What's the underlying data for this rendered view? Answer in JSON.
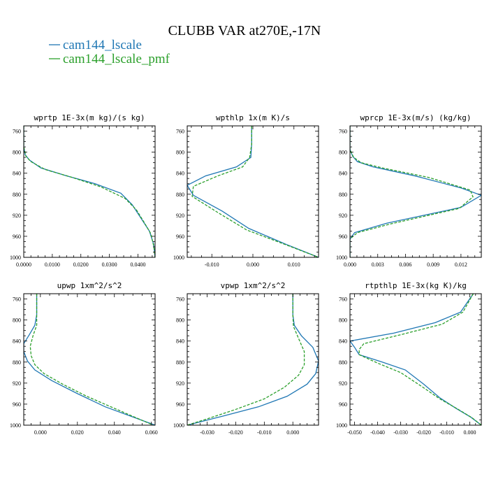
{
  "figure": {
    "title": "CLUBB VAR at270E,-17N",
    "legend": [
      {
        "label": "cam144_lscale",
        "color": "#1f77b4"
      },
      {
        "label": "cam144_lscale_pmf",
        "color": "#2ca02c"
      }
    ]
  },
  "chart_data": [
    {
      "type": "line",
      "title": "wprtp  1E-3x(m kg)/(s kg)",
      "xlim": [
        0,
        0.046
      ],
      "ylim": [
        1000,
        750
      ],
      "xticks": [
        0,
        0.01,
        0.02,
        0.03,
        0.04
      ],
      "xtick_labels": [
        "0.0000",
        "0.0100",
        "0.0200",
        "0.0300",
        "0.0400"
      ],
      "yticks": [
        760,
        800,
        840,
        880,
        920,
        960,
        1000
      ],
      "ytick_labels": [
        "760",
        "800",
        "840",
        "880",
        "920",
        "960",
        "1000"
      ],
      "series": [
        {
          "name": "cam144_lscale",
          "color": "#1f77b4",
          "dash": false,
          "points": [
            [
              0,
              750
            ],
            [
              0,
              790
            ],
            [
              0.0005,
              805
            ],
            [
              0.002,
              815
            ],
            [
              0.006,
              830
            ],
            [
              0.015,
              845
            ],
            [
              0.025,
              860
            ],
            [
              0.034,
              878
            ],
            [
              0.038,
              900
            ],
            [
              0.041,
              925
            ],
            [
              0.044,
              950
            ],
            [
              0.0455,
              975
            ],
            [
              0.046,
              1000
            ]
          ]
        },
        {
          "name": "cam144_lscale_pmf",
          "color": "#2ca02c",
          "dash": true,
          "points": [
            [
              0,
              750
            ],
            [
              0,
              790
            ],
            [
              0.0008,
              808
            ],
            [
              0.0025,
              818
            ],
            [
              0.0075,
              833
            ],
            [
              0.017,
              848
            ],
            [
              0.027,
              866
            ],
            [
              0.0355,
              888
            ],
            [
              0.0395,
              910
            ],
            [
              0.042,
              932
            ],
            [
              0.0445,
              955
            ],
            [
              0.0455,
              978
            ],
            [
              0.046,
              1000
            ]
          ]
        }
      ]
    },
    {
      "type": "line",
      "title": "wpthlp  1x(m K)/s",
      "xlim": [
        -0.016,
        0.016
      ],
      "ylim": [
        1000,
        750
      ],
      "xticks": [
        -0.01,
        0,
        0.01
      ],
      "xtick_labels": [
        "-0.010",
        "0.000",
        "0.010"
      ],
      "yticks": [
        760,
        800,
        840,
        880,
        920,
        960,
        1000
      ],
      "ytick_labels": [
        "760",
        "800",
        "840",
        "880",
        "920",
        "960",
        "1000"
      ],
      "series": [
        {
          "name": "cam144_lscale",
          "color": "#1f77b4",
          "dash": false,
          "points": [
            [
              -0.0003,
              750
            ],
            [
              -0.0003,
              785
            ],
            [
              -0.0005,
              810
            ],
            [
              -0.004,
              828
            ],
            [
              -0.0115,
              845
            ],
            [
              -0.016,
              863
            ],
            [
              -0.0145,
              882
            ],
            [
              -0.0075,
              912
            ],
            [
              -0.001,
              945
            ],
            [
              0.008,
              975
            ],
            [
              0.016,
              1000
            ]
          ]
        },
        {
          "name": "cam144_lscale_pmf",
          "color": "#2ca02c",
          "dash": true,
          "points": [
            [
              -0.0003,
              750
            ],
            [
              -0.0003,
              785
            ],
            [
              -0.0008,
              810
            ],
            [
              -0.0025,
              828
            ],
            [
              -0.0085,
              845
            ],
            [
              -0.0145,
              865
            ],
            [
              -0.0148,
              884
            ],
            [
              -0.0085,
              915
            ],
            [
              -0.0015,
              948
            ],
            [
              0.008,
              976
            ],
            [
              0.016,
              1000
            ]
          ]
        }
      ]
    },
    {
      "type": "line",
      "title": "wprcp  1E-3x(m/s) (kg/kg)",
      "xlim": [
        0,
        0.0142
      ],
      "ylim": [
        1000,
        750
      ],
      "xticks": [
        0,
        0.003,
        0.006,
        0.009,
        0.012
      ],
      "xtick_labels": [
        "0.000",
        "0.003",
        "0.006",
        "0.009",
        "0.012"
      ],
      "yticks": [
        760,
        800,
        840,
        880,
        920,
        960,
        1000
      ],
      "ytick_labels": [
        "760",
        "800",
        "840",
        "880",
        "920",
        "960",
        "1000"
      ],
      "series": [
        {
          "name": "cam144_lscale",
          "color": "#1f77b4",
          "dash": false,
          "points": [
            [
              0,
              750
            ],
            [
              0,
              795
            ],
            [
              0.0003,
              808
            ],
            [
              0.0008,
              818
            ],
            [
              0.0025,
              828
            ],
            [
              0.007,
              845
            ],
            [
              0.012,
              868
            ],
            [
              0.0142,
              882
            ],
            [
              0.012,
              905
            ],
            [
              0.004,
              935
            ],
            [
              0.0005,
              953
            ],
            [
              0,
              965
            ],
            [
              0,
              1000
            ]
          ]
        },
        {
          "name": "cam144_lscale_pmf",
          "color": "#2ca02c",
          "dash": true,
          "points": [
            [
              0,
              750
            ],
            [
              0,
              795
            ],
            [
              0.0004,
              810
            ],
            [
              0.0012,
              820
            ],
            [
              0.0035,
              830
            ],
            [
              0.0085,
              848
            ],
            [
              0.013,
              872
            ],
            [
              0.0133,
              885
            ],
            [
              0.0118,
              907
            ],
            [
              0.0045,
              936
            ],
            [
              0.0008,
              953
            ],
            [
              0,
              965
            ],
            [
              0,
              1000
            ]
          ]
        }
      ]
    },
    {
      "type": "line",
      "title": "upwp  1xm^2/s^2",
      "xlim": [
        -0.009,
        0.062
      ],
      "ylim": [
        1000,
        750
      ],
      "xticks": [
        0,
        0.02,
        0.04,
        0.06
      ],
      "xtick_labels": [
        "0.000",
        "0.020",
        "0.040",
        "0.060"
      ],
      "yticks": [
        760,
        800,
        840,
        880,
        920,
        960,
        1000
      ],
      "ytick_labels": [
        "760",
        "800",
        "840",
        "880",
        "920",
        "960",
        "1000"
      ],
      "series": [
        {
          "name": "cam144_lscale",
          "color": "#1f77b4",
          "dash": false,
          "points": [
            [
              -0.002,
              750
            ],
            [
              -0.002,
              790
            ],
            [
              -0.003,
              810
            ],
            [
              -0.006,
              828
            ],
            [
              -0.009,
              845
            ],
            [
              -0.009,
              860
            ],
            [
              -0.007,
              878
            ],
            [
              -0.003,
              895
            ],
            [
              0.006,
              915
            ],
            [
              0.02,
              940
            ],
            [
              0.035,
              965
            ],
            [
              0.062,
              1000
            ]
          ]
        },
        {
          "name": "cam144_lscale_pmf",
          "color": "#2ca02c",
          "dash": true,
          "points": [
            [
              -0.002,
              750
            ],
            [
              -0.002,
              790
            ],
            [
              -0.002,
              810
            ],
            [
              -0.004,
              830
            ],
            [
              -0.0055,
              850
            ],
            [
              -0.005,
              868
            ],
            [
              -0.003,
              885
            ],
            [
              0.002,
              902
            ],
            [
              0.012,
              922
            ],
            [
              0.025,
              945
            ],
            [
              0.04,
              968
            ],
            [
              0.061,
              1000
            ]
          ]
        }
      ]
    },
    {
      "type": "line",
      "title": "vpwp  1xm^2/s^2",
      "xlim": [
        -0.037,
        0.009
      ],
      "ylim": [
        1000,
        750
      ],
      "xticks": [
        -0.03,
        -0.02,
        -0.01,
        0
      ],
      "xtick_labels": [
        "-0.030",
        "-0.020",
        "-0.010",
        "0.000"
      ],
      "yticks": [
        760,
        800,
        840,
        880,
        920,
        960,
        1000
      ],
      "ytick_labels": [
        "760",
        "800",
        "840",
        "880",
        "920",
        "960",
        "1000"
      ],
      "series": [
        {
          "name": "cam144_lscale",
          "color": "#1f77b4",
          "dash": false,
          "points": [
            [
              0,
              750
            ],
            [
              0,
              790
            ],
            [
              0.0005,
              810
            ],
            [
              0.003,
              830
            ],
            [
              0.007,
              852
            ],
            [
              0.009,
              878
            ],
            [
              0.008,
              902
            ],
            [
              0.005,
              922
            ],
            [
              -0.002,
              945
            ],
            [
              -0.012,
              965
            ],
            [
              -0.024,
              982
            ],
            [
              -0.037,
              1000
            ]
          ]
        },
        {
          "name": "cam144_lscale_pmf",
          "color": "#2ca02c",
          "dash": true,
          "points": [
            [
              0,
              750
            ],
            [
              0,
              790
            ],
            [
              0.0002,
              812
            ],
            [
              0.002,
              835
            ],
            [
              0.004,
              860
            ],
            [
              0.004,
              885
            ],
            [
              0.002,
              905
            ],
            [
              -0.003,
              928
            ],
            [
              -0.01,
              950
            ],
            [
              -0.02,
              970
            ],
            [
              -0.03,
              988
            ],
            [
              -0.037,
              1000
            ]
          ]
        }
      ]
    },
    {
      "type": "line",
      "title": "rtpthlp  1E-3x(kg K)/kg",
      "xlim": [
        -0.052,
        0.005
      ],
      "ylim": [
        1000,
        750
      ],
      "xticks": [
        -0.05,
        -0.04,
        -0.03,
        -0.02,
        -0.01,
        0
      ],
      "xtick_labels": [
        "-0.050",
        "-0.040",
        "-0.030",
        "-0.020",
        "-0.010",
        "0.000"
      ],
      "yticks": [
        760,
        800,
        840,
        880,
        920,
        960,
        1000
      ],
      "ytick_labels": [
        "760",
        "800",
        "840",
        "880",
        "920",
        "960",
        "1000"
      ],
      "series": [
        {
          "name": "cam144_lscale",
          "color": "#1f77b4",
          "dash": false,
          "points": [
            [
              0.0015,
              750
            ],
            [
              -0.004,
              785
            ],
            [
              -0.015,
              805
            ],
            [
              -0.033,
              825
            ],
            [
              -0.052,
              840
            ],
            [
              -0.05,
              852
            ],
            [
              -0.048,
              866
            ],
            [
              -0.038,
              880
            ],
            [
              -0.028,
              895
            ],
            [
              -0.02,
              922
            ],
            [
              -0.013,
              948
            ],
            [
              -0.006,
              968
            ],
            [
              0.0005,
              985
            ],
            [
              0.005,
              1000
            ]
          ]
        },
        {
          "name": "cam144_lscale_pmf",
          "color": "#2ca02c",
          "dash": true,
          "points": [
            [
              0.0015,
              750
            ],
            [
              -0.003,
              785
            ],
            [
              -0.012,
              808
            ],
            [
              -0.03,
              828
            ],
            [
              -0.046,
              845
            ],
            [
              -0.048,
              856
            ],
            [
              -0.048,
              866
            ],
            [
              -0.04,
              882
            ],
            [
              -0.03,
              900
            ],
            [
              -0.021,
              926
            ],
            [
              -0.013,
              950
            ],
            [
              -0.005,
              970
            ],
            [
              0.001,
              986
            ],
            [
              0.005,
              1000
            ]
          ]
        }
      ]
    }
  ]
}
